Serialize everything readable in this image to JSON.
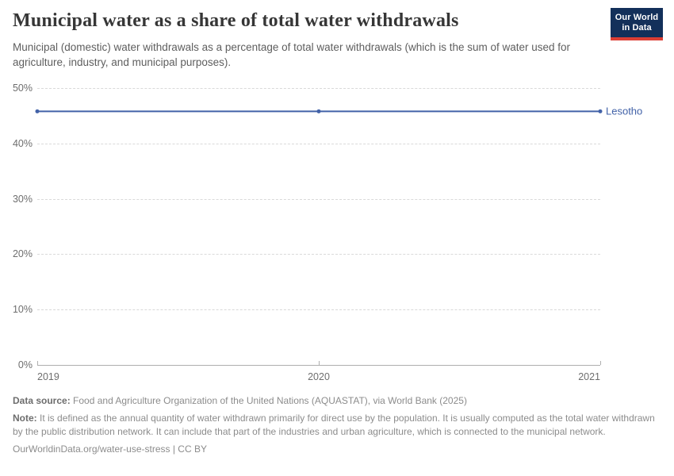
{
  "header": {
    "title": "Municipal water as a share of total water withdrawals",
    "subtitle": "Municipal (domestic) water withdrawals as a percentage of total water withdrawals (which is the sum of water used for agriculture, industry, and municipal purposes).",
    "logo": {
      "line1": "Our World",
      "line2": "in Data",
      "bg_color": "#13305a",
      "accent_color": "#dc3e34"
    }
  },
  "chart_data": {
    "type": "line",
    "title": "Municipal water as a share of total water withdrawals",
    "x": [
      2019,
      2020,
      2021
    ],
    "series": [
      {
        "name": "Lesotho",
        "values": [
          45.8,
          45.8,
          45.8
        ],
        "color": "#4262a8"
      }
    ],
    "xlabel": "",
    "ylabel": "",
    "ylim": [
      0,
      50
    ],
    "yticks": [
      0,
      10,
      20,
      30,
      40,
      50
    ],
    "ytick_suffix": "%",
    "xticks": [
      2019,
      2020,
      2021
    ],
    "grid": "horizontal-dashed",
    "legend_position": "right-end-of-line-label"
  },
  "footer": {
    "data_source_label": "Data source:",
    "data_source": "Food and Agriculture Organization of the United Nations (AQUASTAT), via World Bank (2025)",
    "note_label": "Note:",
    "note": "It is defined as the annual quantity of water withdrawn primarily for direct use by the population. It is usually computed as the total water withdrawn by the public distribution network. It can include that part of the industries and urban agriculture, which is connected to the municipal network.",
    "link": "OurWorldinData.org/water-use-stress | CC BY"
  }
}
